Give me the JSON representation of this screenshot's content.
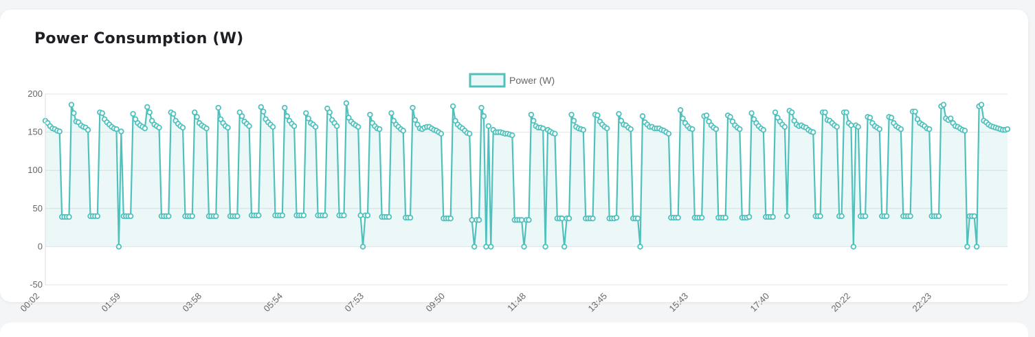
{
  "title": "Power Consumption (W)",
  "chart_data": {
    "type": "area",
    "title": "Power Consumption (W)",
    "xlabel": "",
    "ylabel": "",
    "ylim": [
      -50,
      200
    ],
    "y_ticks": [
      200,
      150,
      100,
      50,
      0,
      -50
    ],
    "x_tick_labels": [
      "00:02",
      "01:59",
      "03:58",
      "05:54",
      "07:53",
      "09:50",
      "11:48",
      "13:45",
      "15:43",
      "17:40",
      "20:22",
      "22:23"
    ],
    "legend": {
      "position": "top-center"
    },
    "grid": true,
    "colors": {
      "line": "#4fc1bd",
      "fill": "#4fc1bd"
    },
    "series": [
      {
        "name": "Power (W)",
        "values": [
          165,
          162,
          158,
          155,
          154,
          152,
          151,
          39,
          39,
          39,
          39,
          186,
          175,
          164,
          163,
          159,
          157,
          156,
          153,
          40,
          40,
          40,
          40,
          176,
          175,
          167,
          163,
          160,
          157,
          155,
          154,
          0,
          151,
          40,
          40,
          40,
          40,
          174,
          167,
          162,
          159,
          157,
          155,
          183,
          176,
          165,
          160,
          158,
          156,
          40,
          40,
          40,
          40,
          176,
          174,
          165,
          161,
          158,
          156,
          40,
          40,
          40,
          40,
          176,
          170,
          162,
          159,
          157,
          155,
          40,
          40,
          40,
          40,
          182,
          167,
          162,
          158,
          156,
          40,
          40,
          40,
          40,
          176,
          171,
          164,
          161,
          158,
          41,
          41,
          41,
          41,
          183,
          177,
          167,
          163,
          160,
          157,
          41,
          41,
          41,
          41,
          182,
          171,
          165,
          161,
          158,
          41,
          41,
          41,
          41,
          175,
          168,
          162,
          160,
          157,
          41,
          41,
          41,
          41,
          181,
          176,
          166,
          162,
          158,
          41,
          41,
          41,
          188,
          169,
          164,
          161,
          159,
          157,
          41,
          0,
          41,
          41,
          173,
          162,
          158,
          155,
          154,
          39,
          39,
          39,
          39,
          175,
          165,
          160,
          157,
          154,
          152,
          38,
          38,
          38,
          182,
          166,
          160,
          155,
          154,
          156,
          157,
          157,
          155,
          153,
          152,
          150,
          148,
          37,
          37,
          37,
          37,
          184,
          165,
          160,
          157,
          155,
          152,
          149,
          148,
          35,
          0,
          35,
          35,
          182,
          171,
          0,
          158,
          0,
          153,
          150,
          150,
          150,
          149,
          148,
          148,
          147,
          146,
          35,
          35,
          35,
          35,
          0,
          35,
          35,
          173,
          165,
          158,
          156,
          156,
          155,
          0,
          153,
          151,
          149,
          148,
          37,
          37,
          37,
          0,
          37,
          37,
          173,
          165,
          157,
          155,
          154,
          153,
          37,
          37,
          37,
          37,
          173,
          172,
          164,
          160,
          157,
          155,
          37,
          37,
          37,
          38,
          174,
          165,
          160,
          159,
          156,
          154,
          37,
          37,
          37,
          0,
          171,
          163,
          160,
          157,
          157,
          155,
          155,
          155,
          153,
          152,
          150,
          148,
          38,
          38,
          38,
          38,
          179,
          168,
          162,
          158,
          155,
          154,
          38,
          38,
          38,
          38,
          171,
          172,
          164,
          159,
          156,
          154,
          38,
          38,
          38,
          38,
          172,
          170,
          164,
          159,
          156,
          154,
          38,
          38,
          38,
          39,
          175,
          167,
          162,
          158,
          155,
          153,
          39,
          39,
          39,
          39,
          176,
          169,
          164,
          160,
          157,
          40,
          178,
          176,
          165,
          160,
          158,
          159,
          157,
          156,
          153,
          151,
          150,
          40,
          40,
          40,
          176,
          176,
          166,
          165,
          162,
          159,
          157,
          40,
          40,
          176,
          176,
          162,
          159,
          0,
          159,
          157,
          40,
          40,
          40,
          170,
          169,
          162,
          158,
          156,
          154,
          40,
          40,
          40,
          170,
          169,
          162,
          158,
          156,
          154,
          40,
          40,
          40,
          40,
          177,
          177,
          167,
          162,
          160,
          158,
          155,
          154,
          40,
          40,
          40,
          40,
          184,
          186,
          168,
          166,
          168,
          162,
          158,
          157,
          155,
          153,
          152,
          0,
          40,
          40,
          40,
          0,
          184,
          186,
          165,
          163,
          160,
          158,
          157,
          156,
          155,
          154,
          153,
          153,
          154
        ]
      }
    ]
  }
}
